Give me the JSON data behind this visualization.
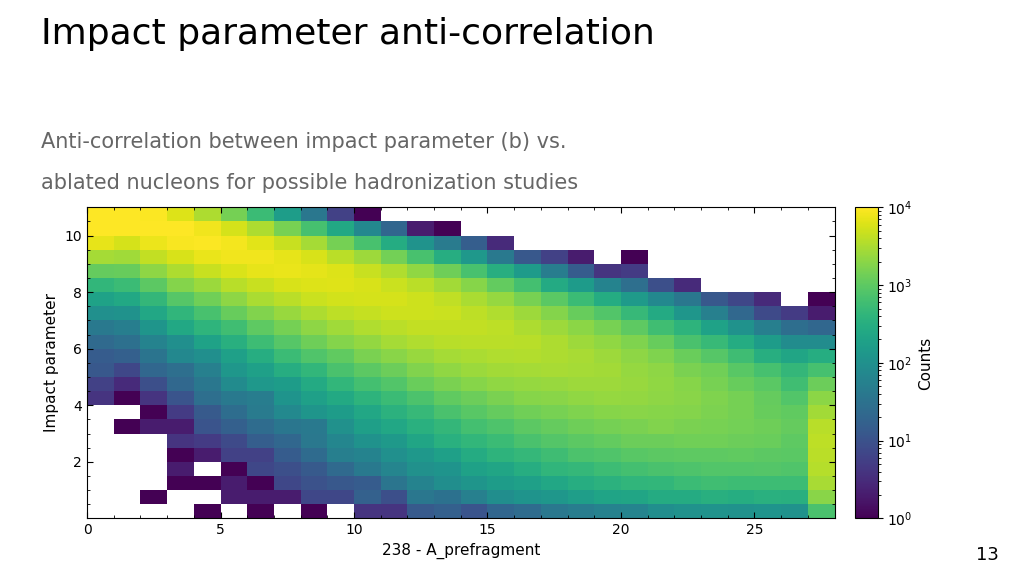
{
  "title": "Impact parameter anti-correlation",
  "subtitle_line1": "Anti-correlation between impact parameter (b) vs.",
  "subtitle_line2": "ablated nucleons for possible hadronization studies",
  "xlabel": "238 - A_prefragment",
  "ylabel": "Impact parameter",
  "colorbar_label": "Counts",
  "page_number": "13",
  "xlim": [
    0,
    28
  ],
  "ylim": [
    0,
    11
  ],
  "xticks": [
    0,
    5,
    10,
    15,
    20,
    25
  ],
  "yticks": [
    2,
    4,
    6,
    8,
    10
  ],
  "colormap": "viridis",
  "vmin": 1,
  "vmax": 10000,
  "background_color": "#ffffff",
  "title_fontsize": 26,
  "subtitle_fontsize": 15,
  "axis_label_fontsize": 11,
  "tick_fontsize": 10
}
